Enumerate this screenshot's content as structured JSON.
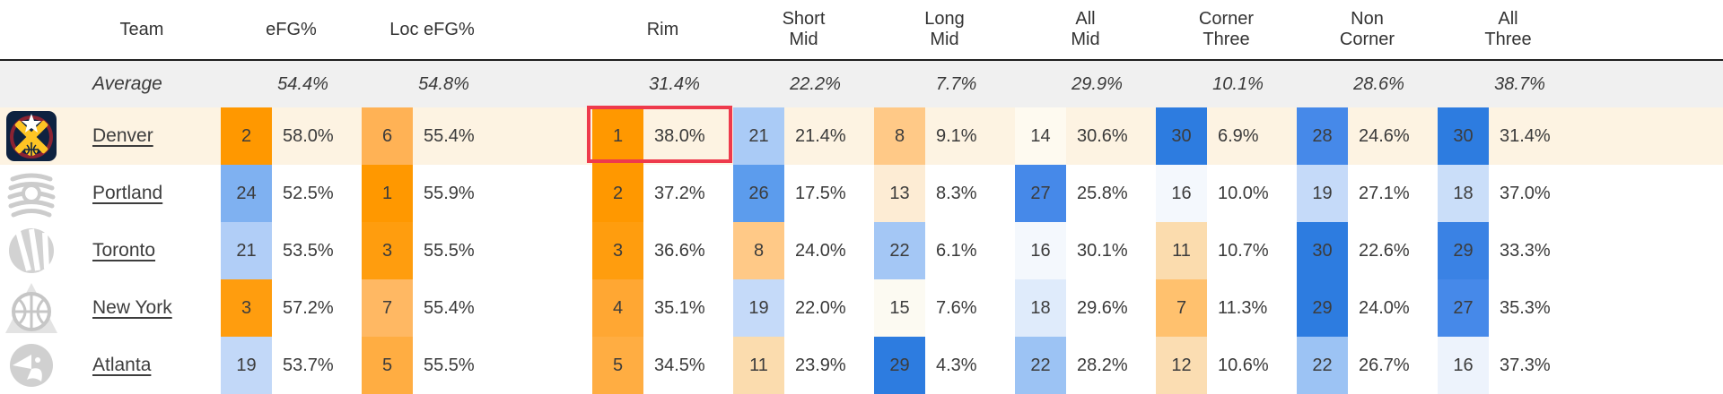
{
  "table": {
    "columns": [
      {
        "id": "team",
        "label": "Team"
      },
      {
        "id": "efg",
        "label": "eFG%"
      },
      {
        "id": "loc_efg",
        "label": "Loc eFG%"
      },
      {
        "id": "rim",
        "label": "Rim"
      },
      {
        "id": "short_mid",
        "label": "Short\nMid"
      },
      {
        "id": "long_mid",
        "label": "Long\nMid"
      },
      {
        "id": "all_mid",
        "label": "All\nMid"
      },
      {
        "id": "corner_three",
        "label": "Corner\nThree"
      },
      {
        "id": "non_corner",
        "label": "Non\nCorner"
      },
      {
        "id": "all_three",
        "label": "All\nThree"
      }
    ],
    "average": {
      "label": "Average",
      "values": [
        "54.4%",
        "54.8%",
        "31.4%",
        "22.2%",
        "7.7%",
        "29.9%",
        "10.1%",
        "28.6%",
        "38.7%"
      ]
    },
    "teams": [
      {
        "name": "Denver",
        "logo": "denver-nuggets-logo",
        "row_bg": "#fdf3e2",
        "highlight_column": "rim",
        "stats": [
          {
            "rank": "2",
            "value": "58.0%",
            "bg": "#ff9800"
          },
          {
            "rank": "6",
            "value": "55.4%",
            "bg": "#ffb255"
          },
          {
            "rank": "1",
            "value": "38.0%",
            "bg": "#ff9800"
          },
          {
            "rank": "21",
            "value": "21.4%",
            "bg": "#aacbf6"
          },
          {
            "rank": "8",
            "value": "9.1%",
            "bg": "#ffc987"
          },
          {
            "rank": "14",
            "value": "30.6%",
            "bg": "#fefaf0"
          },
          {
            "rank": "30",
            "value": "6.9%",
            "bg": "#2d7ce0"
          },
          {
            "rank": "28",
            "value": "24.6%",
            "bg": "#4689e9"
          },
          {
            "rank": "30",
            "value": "31.4%",
            "bg": "#2d7ce0"
          }
        ]
      },
      {
        "name": "Portland",
        "logo": "portland-trail-blazers-logo",
        "row_bg": "#ffffff",
        "highlight_column": null,
        "stats": [
          {
            "rank": "24",
            "value": "52.5%",
            "bg": "#7fb1f1"
          },
          {
            "rank": "1",
            "value": "55.9%",
            "bg": "#ff9800"
          },
          {
            "rank": "2",
            "value": "37.2%",
            "bg": "#ff9800"
          },
          {
            "rank": "26",
            "value": "17.5%",
            "bg": "#5c9ced"
          },
          {
            "rank": "13",
            "value": "8.3%",
            "bg": "#fdecd4"
          },
          {
            "rank": "27",
            "value": "25.8%",
            "bg": "#4689e9"
          },
          {
            "rank": "16",
            "value": "10.0%",
            "bg": "#f4f8fd"
          },
          {
            "rank": "19",
            "value": "27.1%",
            "bg": "#c5daf9"
          },
          {
            "rank": "18",
            "value": "37.0%",
            "bg": "#cadef9"
          }
        ]
      },
      {
        "name": "Toronto",
        "logo": "toronto-raptors-logo",
        "row_bg": "#ffffff",
        "highlight_column": null,
        "stats": [
          {
            "rank": "21",
            "value": "53.5%",
            "bg": "#b1cef7"
          },
          {
            "rank": "3",
            "value": "55.5%",
            "bg": "#ff9d0e"
          },
          {
            "rank": "3",
            "value": "36.6%",
            "bg": "#ff9d0e"
          },
          {
            "rank": "8",
            "value": "24.0%",
            "bg": "#ffc987"
          },
          {
            "rank": "22",
            "value": "6.1%",
            "bg": "#a4c7f5"
          },
          {
            "rank": "16",
            "value": "30.1%",
            "bg": "#f4f8fd"
          },
          {
            "rank": "11",
            "value": "10.7%",
            "bg": "#fbdcae"
          },
          {
            "rank": "30",
            "value": "22.6%",
            "bg": "#2d7ce0"
          },
          {
            "rank": "29",
            "value": "33.3%",
            "bg": "#3a82e4"
          }
        ]
      },
      {
        "name": "New York",
        "logo": "new-york-knicks-logo",
        "row_bg": "#ffffff",
        "highlight_column": null,
        "stats": [
          {
            "rank": "3",
            "value": "57.2%",
            "bg": "#ff9d0e"
          },
          {
            "rank": "7",
            "value": "55.4%",
            "bg": "#ffb863"
          },
          {
            "rank": "4",
            "value": "35.1%",
            "bg": "#ffa733"
          },
          {
            "rank": "19",
            "value": "22.0%",
            "bg": "#c5daf9"
          },
          {
            "rank": "15",
            "value": "7.6%",
            "bg": "#fcfaf2"
          },
          {
            "rank": "18",
            "value": "29.6%",
            "bg": "#dfebfb"
          },
          {
            "rank": "7",
            "value": "11.3%",
            "bg": "#ffc16e"
          },
          {
            "rank": "29",
            "value": "24.0%",
            "bg": "#2d7ce0"
          },
          {
            "rank": "27",
            "value": "35.3%",
            "bg": "#4689e9"
          }
        ]
      },
      {
        "name": "Atlanta",
        "logo": "atlanta-hawks-logo",
        "row_bg": "#ffffff",
        "highlight_column": null,
        "stats": [
          {
            "rank": "19",
            "value": "53.7%",
            "bg": "#c2d8f8"
          },
          {
            "rank": "5",
            "value": "55.5%",
            "bg": "#ffad42"
          },
          {
            "rank": "5",
            "value": "34.5%",
            "bg": "#ffad42"
          },
          {
            "rank": "11",
            "value": "23.9%",
            "bg": "#fbdcae"
          },
          {
            "rank": "29",
            "value": "4.3%",
            "bg": "#2d7ce0"
          },
          {
            "rank": "22",
            "value": "28.2%",
            "bg": "#9cc3f4"
          },
          {
            "rank": "12",
            "value": "10.6%",
            "bg": "#fbddb2"
          },
          {
            "rank": "22",
            "value": "26.7%",
            "bg": "#9cc3f4"
          },
          {
            "rank": "16",
            "value": "37.3%",
            "bg": "#edf3fc"
          }
        ]
      }
    ],
    "style": {
      "header_border_color": "#1f1f1f",
      "average_row_bg": "#f0f0f0",
      "highlight_row_bg": "#fdf3e2",
      "red_box_color": "#ee3a4c",
      "rank_high_color": "#ff9800",
      "rank_low_color": "#2d7ce0"
    }
  }
}
